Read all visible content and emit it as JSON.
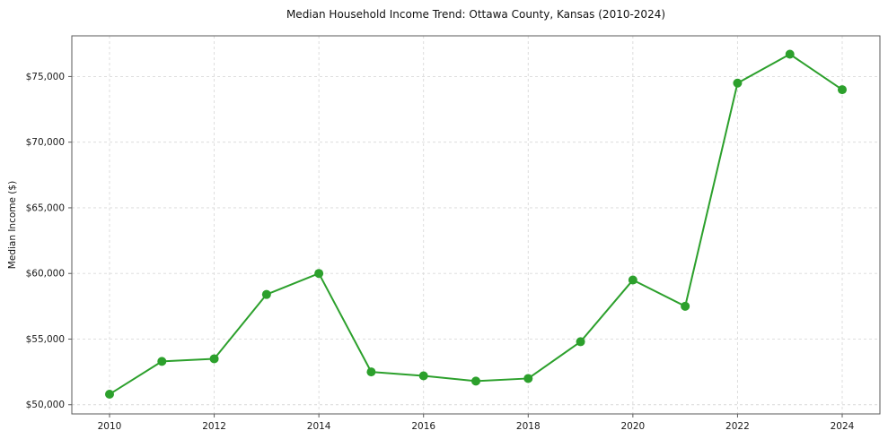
{
  "chart_data": {
    "type": "line",
    "title": "Median Household Income Trend: Ottawa County, Kansas (2010-2024)",
    "ylabel": "Median Income ($)",
    "xlabel": "",
    "x": [
      2010,
      2011,
      2012,
      2013,
      2014,
      2015,
      2016,
      2017,
      2018,
      2019,
      2020,
      2021,
      2022,
      2023,
      2024
    ],
    "values": [
      50800,
      53300,
      53500,
      58400,
      60000,
      52500,
      52200,
      51800,
      52000,
      54800,
      59500,
      57500,
      74500,
      76700,
      74000
    ],
    "ylim": [
      49300,
      78100
    ],
    "yticks": [
      50000,
      55000,
      60000,
      65000,
      70000,
      75000
    ],
    "ytick_labels": [
      "$50,000",
      "$55,000",
      "$60,000",
      "$65,000",
      "$70,000",
      "$75,000"
    ],
    "xticks": [
      2010,
      2012,
      2014,
      2016,
      2018,
      2020,
      2022,
      2024
    ],
    "xtick_labels": [
      "2010",
      "2012",
      "2014",
      "2016",
      "2018",
      "2020",
      "2022",
      "2024"
    ],
    "line_color": "#2ca02c",
    "grid": true,
    "grid_style": "dashed",
    "grid_color": "#d9d9d9",
    "spine_color": "#5a5a5a",
    "tick_label_color": "#1a1a1a",
    "marker": "circle",
    "legend": "none"
  }
}
